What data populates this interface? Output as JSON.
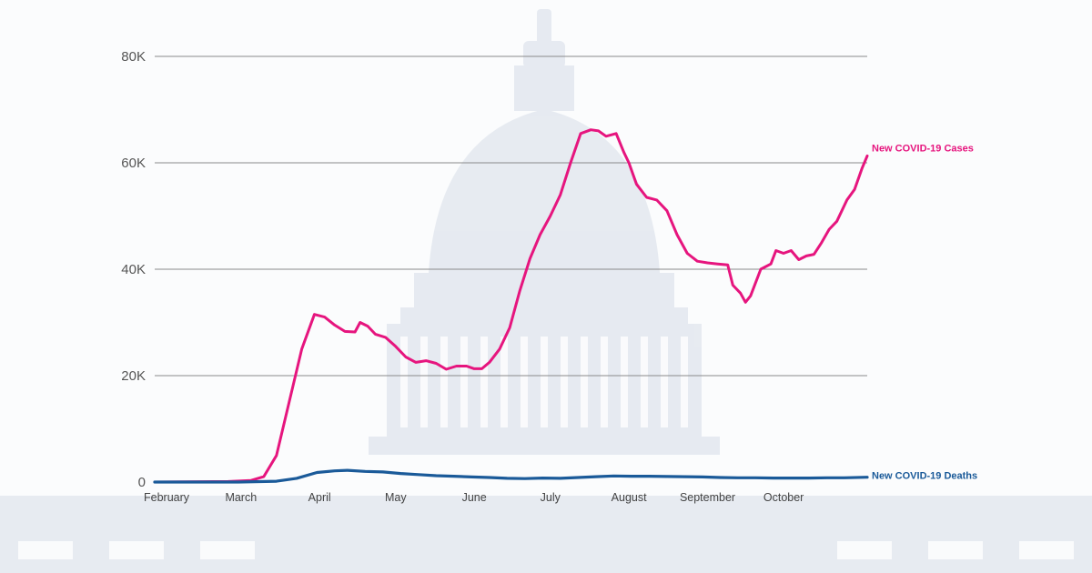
{
  "chart_data": {
    "type": "line",
    "title": "",
    "xlabel": "",
    "ylabel": "",
    "ylim": [
      0,
      80000
    ],
    "grid": "horizontal",
    "x_month_labels": [
      "February",
      "March",
      "April",
      "May",
      "June",
      "July",
      "August",
      "September",
      "October"
    ],
    "y_tick_labels": [
      "0",
      "20K",
      "40K",
      "60K",
      "80K"
    ],
    "y_ticks": [
      0,
      20000,
      40000,
      60000,
      80000
    ],
    "series": [
      {
        "name": "New COVID-19 Cases",
        "color": "#e6157e",
        "label_position": "right-end",
        "points": [
          [
            "2020-02-01",
            0
          ],
          [
            "2020-03-01",
            100
          ],
          [
            "2020-03-10",
            300
          ],
          [
            "2020-03-15",
            1000
          ],
          [
            "2020-03-20",
            5000
          ],
          [
            "2020-03-25",
            15000
          ],
          [
            "2020-03-30",
            25000
          ],
          [
            "2020-04-04",
            31500
          ],
          [
            "2020-04-08",
            31000
          ],
          [
            "2020-04-12",
            29500
          ],
          [
            "2020-04-16",
            28300
          ],
          [
            "2020-04-20",
            28200
          ],
          [
            "2020-04-22",
            30000
          ],
          [
            "2020-04-25",
            29300
          ],
          [
            "2020-04-28",
            27800
          ],
          [
            "2020-05-02",
            27200
          ],
          [
            "2020-05-06",
            25500
          ],
          [
            "2020-05-10",
            23500
          ],
          [
            "2020-05-14",
            22500
          ],
          [
            "2020-05-18",
            22800
          ],
          [
            "2020-05-22",
            22300
          ],
          [
            "2020-05-26",
            21200
          ],
          [
            "2020-05-30",
            21800
          ],
          [
            "2020-06-03",
            21800
          ],
          [
            "2020-06-06",
            21300
          ],
          [
            "2020-06-09",
            21300
          ],
          [
            "2020-06-12",
            22500
          ],
          [
            "2020-06-16",
            25000
          ],
          [
            "2020-06-20",
            29000
          ],
          [
            "2020-06-24",
            36000
          ],
          [
            "2020-06-28",
            42000
          ],
          [
            "2020-07-02",
            46500
          ],
          [
            "2020-07-06",
            50000
          ],
          [
            "2020-07-10",
            54000
          ],
          [
            "2020-07-14",
            60000
          ],
          [
            "2020-07-18",
            65500
          ],
          [
            "2020-07-22",
            66200
          ],
          [
            "2020-07-25",
            66000
          ],
          [
            "2020-07-28",
            65000
          ],
          [
            "2020-08-01",
            65500
          ],
          [
            "2020-08-04",
            62000
          ],
          [
            "2020-08-06",
            60000
          ],
          [
            "2020-08-09",
            56000
          ],
          [
            "2020-08-13",
            53500
          ],
          [
            "2020-08-17",
            53000
          ],
          [
            "2020-08-21",
            51000
          ],
          [
            "2020-08-25",
            46500
          ],
          [
            "2020-08-29",
            43000
          ],
          [
            "2020-09-02",
            41500
          ],
          [
            "2020-09-06",
            41200
          ],
          [
            "2020-09-10",
            41000
          ],
          [
            "2020-09-14",
            40800
          ],
          [
            "2020-09-16",
            37000
          ],
          [
            "2020-09-19",
            35500
          ],
          [
            "2020-09-21",
            33800
          ],
          [
            "2020-09-23",
            35000
          ],
          [
            "2020-09-27",
            40000
          ],
          [
            "2020-10-01",
            41000
          ],
          [
            "2020-10-03",
            43500
          ],
          [
            "2020-10-06",
            43000
          ],
          [
            "2020-10-09",
            43500
          ],
          [
            "2020-10-12",
            41800
          ],
          [
            "2020-10-15",
            42500
          ],
          [
            "2020-10-18",
            42800
          ],
          [
            "2020-10-21",
            45000
          ],
          [
            "2020-10-24",
            47500
          ],
          [
            "2020-10-27",
            49000
          ],
          [
            "2020-10-31",
            53000
          ],
          [
            "2020-11-03",
            55000
          ],
          [
            "2020-11-06",
            59000
          ],
          [
            "2020-11-08",
            61300
          ]
        ]
      },
      {
        "name": "New COVID-19 Deaths",
        "color": "#1a5a99",
        "label_position": "right-end",
        "points": [
          [
            "2020-02-01",
            0
          ],
          [
            "2020-03-05",
            0
          ],
          [
            "2020-03-20",
            150
          ],
          [
            "2020-03-28",
            700
          ],
          [
            "2020-04-05",
            1800
          ],
          [
            "2020-04-12",
            2100
          ],
          [
            "2020-04-17",
            2200
          ],
          [
            "2020-04-24",
            2000
          ],
          [
            "2020-05-01",
            1900
          ],
          [
            "2020-05-08",
            1600
          ],
          [
            "2020-05-15",
            1400
          ],
          [
            "2020-05-22",
            1200
          ],
          [
            "2020-05-29",
            1100
          ],
          [
            "2020-06-05",
            950
          ],
          [
            "2020-06-12",
            850
          ],
          [
            "2020-06-19",
            700
          ],
          [
            "2020-06-26",
            650
          ],
          [
            "2020-07-03",
            750
          ],
          [
            "2020-07-10",
            700
          ],
          [
            "2020-07-17",
            850
          ],
          [
            "2020-07-24",
            1000
          ],
          [
            "2020-07-31",
            1150
          ],
          [
            "2020-08-07",
            1100
          ],
          [
            "2020-08-14",
            1100
          ],
          [
            "2020-08-21",
            1050
          ],
          [
            "2020-08-28",
            1000
          ],
          [
            "2020-09-04",
            950
          ],
          [
            "2020-09-11",
            850
          ],
          [
            "2020-09-18",
            800
          ],
          [
            "2020-09-25",
            800
          ],
          [
            "2020-10-02",
            750
          ],
          [
            "2020-10-09",
            750
          ],
          [
            "2020-10-16",
            750
          ],
          [
            "2020-10-23",
            800
          ],
          [
            "2020-10-30",
            800
          ],
          [
            "2020-11-08",
            900
          ]
        ]
      }
    ]
  }
}
